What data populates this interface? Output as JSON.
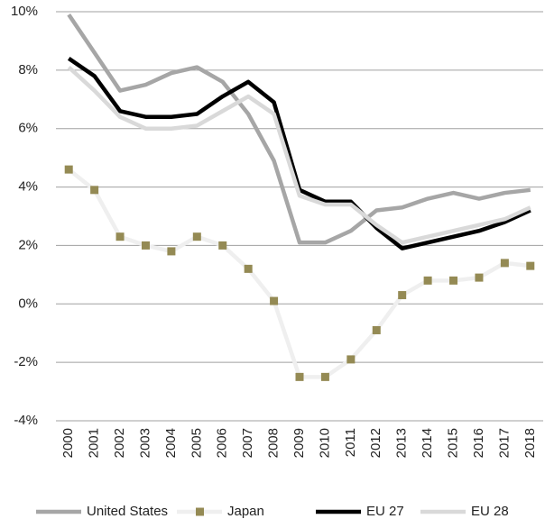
{
  "chart_data": {
    "type": "line",
    "categories": [
      "2000",
      "2001",
      "2002",
      "2003",
      "2004",
      "2005",
      "2006",
      "2007",
      "2008",
      "2009",
      "2010",
      "2011",
      "2012",
      "2013",
      "2014",
      "2015",
      "2016",
      "2017",
      "2018"
    ],
    "series": [
      {
        "name": "United States",
        "color": "#a6a6a6",
        "values": [
          9.9,
          8.6,
          7.3,
          7.5,
          7.9,
          8.1,
          7.6,
          6.5,
          4.9,
          2.1,
          2.1,
          2.5,
          3.2,
          3.3,
          3.6,
          3.8,
          3.6,
          3.8,
          3.9
        ]
      },
      {
        "name": "Japan",
        "color": "#efefef",
        "marker_color": "#948a54",
        "values": [
          4.6,
          3.9,
          2.3,
          2.0,
          1.8,
          2.3,
          2.0,
          1.2,
          0.1,
          -2.5,
          -2.5,
          -1.9,
          -0.9,
          0.3,
          0.8,
          0.8,
          0.9,
          1.4,
          1.3
        ]
      },
      {
        "name": "EU 27",
        "color": "#000000",
        "values": [
          8.4,
          7.8,
          6.6,
          6.4,
          6.4,
          6.5,
          7.1,
          7.6,
          6.9,
          3.9,
          3.5,
          3.5,
          2.6,
          1.9,
          2.1,
          2.3,
          2.5,
          2.8,
          3.2
        ]
      },
      {
        "name": "EU 28",
        "color": "#d9d9d9",
        "values": [
          8.1,
          7.3,
          6.4,
          6.0,
          6.0,
          6.1,
          6.6,
          7.1,
          6.5,
          3.7,
          3.4,
          3.4,
          2.7,
          2.1,
          2.3,
          2.5,
          2.7,
          2.9,
          3.3
        ]
      }
    ],
    "ylim": [
      -4,
      10
    ],
    "yticks": [
      {
        "value": -4,
        "label": "-4%"
      },
      {
        "value": -2,
        "label": "-2%"
      },
      {
        "value": 0,
        "label": "0%"
      },
      {
        "value": 2,
        "label": "2%"
      },
      {
        "value": 4,
        "label": "4%"
      },
      {
        "value": 6,
        "label": "6%"
      },
      {
        "value": 8,
        "label": "8%"
      },
      {
        "value": 10,
        "label": "10%"
      }
    ],
    "grid": true,
    "legend": "bottom"
  }
}
